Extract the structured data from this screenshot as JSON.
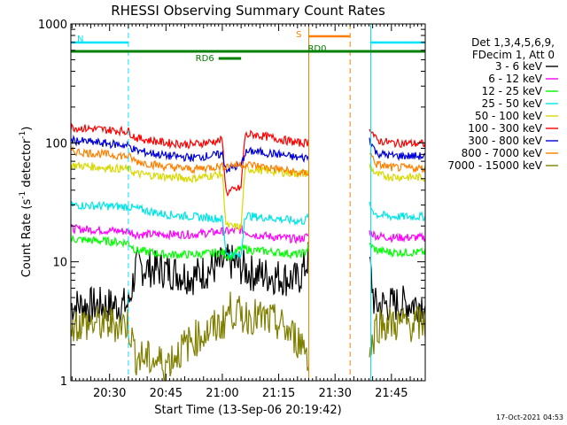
{
  "chart_data": {
    "type": "line",
    "title": "RHESSI Observing Summary Count Rates",
    "xlabel": "Start Time (13-Sep-06 20:19:42)",
    "ylabel_main": "Count Rate (s",
    "ylabel_sup1": "-1",
    "ylabel_mid": " detector",
    "ylabel_sup2": "-1",
    "ylabel_end": ")",
    "yscale": "log",
    "ylim": [
      1,
      1000
    ],
    "xlim_minutes": [
      20.33,
      21.92
    ],
    "x_unit": "HH:MM (13-Sep-06)",
    "x_ticks": [
      "20:30",
      "20:45",
      "21:00",
      "21:15",
      "21:30",
      "21:45"
    ],
    "y_ticks": [
      "1",
      "10",
      "100",
      "1000"
    ],
    "timestamp": "17-Oct-2021 04:53",
    "legend_header": [
      "Det 1,3,4,5,6,9,",
      "FDecim 1, Att 0"
    ],
    "flags": [
      {
        "label": "N",
        "color": "#00e5ff",
        "segments": [
          [
            "20:19:42",
            "20:35:00"
          ],
          [
            "21:39:30",
            "21:54:00"
          ]
        ]
      },
      {
        "label": "S",
        "color": "#ff8000",
        "segments": [
          [
            "21:23:00",
            "21:34:00"
          ]
        ]
      },
      {
        "label": "RD0",
        "color": "#008000",
        "segments": [
          [
            "20:19:42",
            "21:54:00"
          ]
        ]
      },
      {
        "label": "RD6",
        "color": "#008000",
        "segments": [
          [
            "20:59:00",
            "21:05:00"
          ]
        ]
      }
    ],
    "gap": [
      "21:23:00",
      "21:39:00"
    ],
    "series": [
      {
        "name": "3 - 6 keV",
        "color": "#000000",
        "points": [
          [
            "20:19:42",
            4.3
          ],
          [
            "20:35:00",
            4.3
          ],
          [
            "20:37:00",
            9
          ],
          [
            "20:45:00",
            8.5
          ],
          [
            "20:52:00",
            7.5
          ],
          [
            "21:00:00",
            9.5
          ],
          [
            "21:02:00",
            10
          ],
          [
            "21:05:00",
            9
          ],
          [
            "21:08:00",
            8
          ],
          [
            "21:15:00",
            7.5
          ],
          [
            "21:20:00",
            7
          ],
          [
            "21:22:00",
            9
          ],
          [
            "21:23:00",
            11
          ],
          [
            "21:39:00",
            11
          ],
          [
            "21:40:30",
            4.3
          ],
          [
            "21:45:00",
            4.4
          ],
          [
            "21:54:00",
            4.5
          ]
        ]
      },
      {
        "name": "6 - 12 keV",
        "color": "#ff00ff",
        "points": [
          [
            "20:19:42",
            19
          ],
          [
            "20:35:00",
            18
          ],
          [
            "20:37:00",
            17
          ],
          [
            "20:45:00",
            17
          ],
          [
            "20:52:00",
            17
          ],
          [
            "21:00:00",
            18
          ],
          [
            "21:02:00",
            18
          ],
          [
            "21:05:00",
            18.5
          ],
          [
            "21:08:00",
            17
          ],
          [
            "21:15:00",
            16
          ],
          [
            "21:20:00",
            15.5
          ],
          [
            "21:22:00",
            16
          ],
          [
            "21:23:00",
            17
          ],
          [
            "21:39:00",
            18
          ],
          [
            "21:41:00",
            16.5
          ],
          [
            "21:45:00",
            16
          ],
          [
            "21:54:00",
            16
          ]
        ]
      },
      {
        "name": "12 - 25 keV",
        "color": "#00ff00",
        "points": [
          [
            "20:19:42",
            15.5
          ],
          [
            "20:35:00",
            14.5
          ],
          [
            "20:37:00",
            12.5
          ],
          [
            "20:45:00",
            11.5
          ],
          [
            "20:52:00",
            11.5
          ],
          [
            "21:00:00",
            12
          ],
          [
            "21:02:00",
            11
          ],
          [
            "21:05:00",
            13
          ],
          [
            "21:08:00",
            12.5
          ],
          [
            "21:15:00",
            12
          ],
          [
            "21:20:00",
            11.5
          ],
          [
            "21:22:00",
            12
          ],
          [
            "21:23:00",
            13.5
          ],
          [
            "21:39:00",
            14
          ],
          [
            "21:41:00",
            12.5
          ],
          [
            "21:45:00",
            12
          ],
          [
            "21:54:00",
            12
          ]
        ]
      },
      {
        "name": "25 - 50 keV",
        "color": "#00e5e5",
        "points": [
          [
            "20:19:42",
            30
          ],
          [
            "20:35:00",
            29
          ],
          [
            "20:37:00",
            28
          ],
          [
            "20:45:00",
            25
          ],
          [
            "20:52:00",
            24
          ],
          [
            "21:00:00",
            23
          ],
          [
            "21:01:00",
            12
          ],
          [
            "21:05:00",
            11
          ],
          [
            "21:06:00",
            25
          ],
          [
            "21:08:00",
            24
          ],
          [
            "21:15:00",
            23
          ],
          [
            "21:20:00",
            22
          ],
          [
            "21:22:00",
            22
          ],
          [
            "21:23:00",
            25
          ],
          [
            "21:39:00",
            30
          ],
          [
            "21:41:00",
            25
          ],
          [
            "21:45:00",
            24
          ],
          [
            "21:54:00",
            24
          ]
        ]
      },
      {
        "name": "50 - 100 keV",
        "color": "#d9d900",
        "points": [
          [
            "20:19:42",
            65
          ],
          [
            "20:35:00",
            60
          ],
          [
            "20:37:00",
            55
          ],
          [
            "20:45:00",
            52
          ],
          [
            "20:52:00",
            50
          ],
          [
            "21:00:00",
            55
          ],
          [
            "21:01:00",
            20
          ],
          [
            "21:05:00",
            19.5
          ],
          [
            "21:06:00",
            60
          ],
          [
            "21:08:00",
            60
          ],
          [
            "21:15:00",
            57
          ],
          [
            "21:20:00",
            55
          ],
          [
            "21:22:00",
            55
          ],
          [
            "21:23:00",
            57
          ],
          [
            "21:39:00",
            65
          ],
          [
            "21:41:00",
            54
          ],
          [
            "21:45:00",
            52
          ],
          [
            "21:54:00",
            51
          ]
        ]
      },
      {
        "name": "100 - 300 keV",
        "color": "#ff0000",
        "points": [
          [
            "20:19:42",
            135
          ],
          [
            "20:35:00",
            125
          ],
          [
            "20:37:00",
            110
          ],
          [
            "20:45:00",
            100
          ],
          [
            "20:52:00",
            97
          ],
          [
            "21:00:00",
            105
          ],
          [
            "21:01:00",
            38
          ],
          [
            "21:05:00",
            42
          ],
          [
            "21:06:00",
            115
          ],
          [
            "21:08:00",
            118
          ],
          [
            "21:15:00",
            108
          ],
          [
            "21:20:00",
            100
          ],
          [
            "21:22:00",
            100
          ],
          [
            "21:23:00",
            102
          ],
          [
            "21:39:00",
            140
          ],
          [
            "21:41:00",
            105
          ],
          [
            "21:45:00",
            100
          ],
          [
            "21:54:00",
            98
          ]
        ]
      },
      {
        "name": "300 - 800 keV",
        "color": "#0000d9",
        "points": [
          [
            "20:19:42",
            105
          ],
          [
            "20:35:00",
            95
          ],
          [
            "20:37:00",
            86
          ],
          [
            "20:45:00",
            78
          ],
          [
            "20:52:00",
            75
          ],
          [
            "21:00:00",
            80
          ],
          [
            "21:01:00",
            60
          ],
          [
            "21:05:00",
            64
          ],
          [
            "21:06:00",
            82
          ],
          [
            "21:08:00",
            85
          ],
          [
            "21:15:00",
            80
          ],
          [
            "21:20:00",
            75
          ],
          [
            "21:22:00",
            75
          ],
          [
            "21:23:00",
            77
          ],
          [
            "21:39:00",
            110
          ],
          [
            "21:41:00",
            82
          ],
          [
            "21:45:00",
            78
          ],
          [
            "21:54:00",
            77
          ]
        ]
      },
      {
        "name": "800 - 7000 keV",
        "color": "#ff8000",
        "points": [
          [
            "20:19:42",
            85
          ],
          [
            "20:35:00",
            77
          ],
          [
            "20:37:00",
            70
          ],
          [
            "20:45:00",
            63
          ],
          [
            "20:52:00",
            60
          ],
          [
            "21:00:00",
            64
          ],
          [
            "21:01:00",
            64
          ],
          [
            "21:05:00",
            66
          ],
          [
            "21:06:00",
            66
          ],
          [
            "21:08:00",
            65
          ],
          [
            "21:15:00",
            60
          ],
          [
            "21:20:00",
            56
          ],
          [
            "21:22:00",
            55
          ],
          [
            "21:23:00",
            57
          ],
          [
            "21:39:00",
            85
          ],
          [
            "21:41:00",
            66
          ],
          [
            "21:45:00",
            62
          ],
          [
            "21:54:00",
            61
          ]
        ]
      },
      {
        "name": "7000 - 15000 keV",
        "color": "#808000",
        "points": [
          [
            "20:19:42",
            3
          ],
          [
            "20:35:00",
            3
          ],
          [
            "20:37:00",
            1.6
          ],
          [
            "20:45:00",
            1.4
          ],
          [
            "20:52:00",
            2.2
          ],
          [
            "21:00:00",
            3
          ],
          [
            "21:02:00",
            4
          ],
          [
            "21:05:00",
            3.5
          ],
          [
            "21:08:00",
            3.5
          ],
          [
            "21:15:00",
            3
          ],
          [
            "21:20:00",
            2.2
          ],
          [
            "21:22:00",
            2
          ],
          [
            "21:23:00",
            1.5
          ],
          [
            "21:39:00",
            1.5
          ],
          [
            "21:41:00",
            3
          ],
          [
            "21:45:00",
            3
          ],
          [
            "21:54:00",
            3
          ]
        ]
      }
    ]
  }
}
